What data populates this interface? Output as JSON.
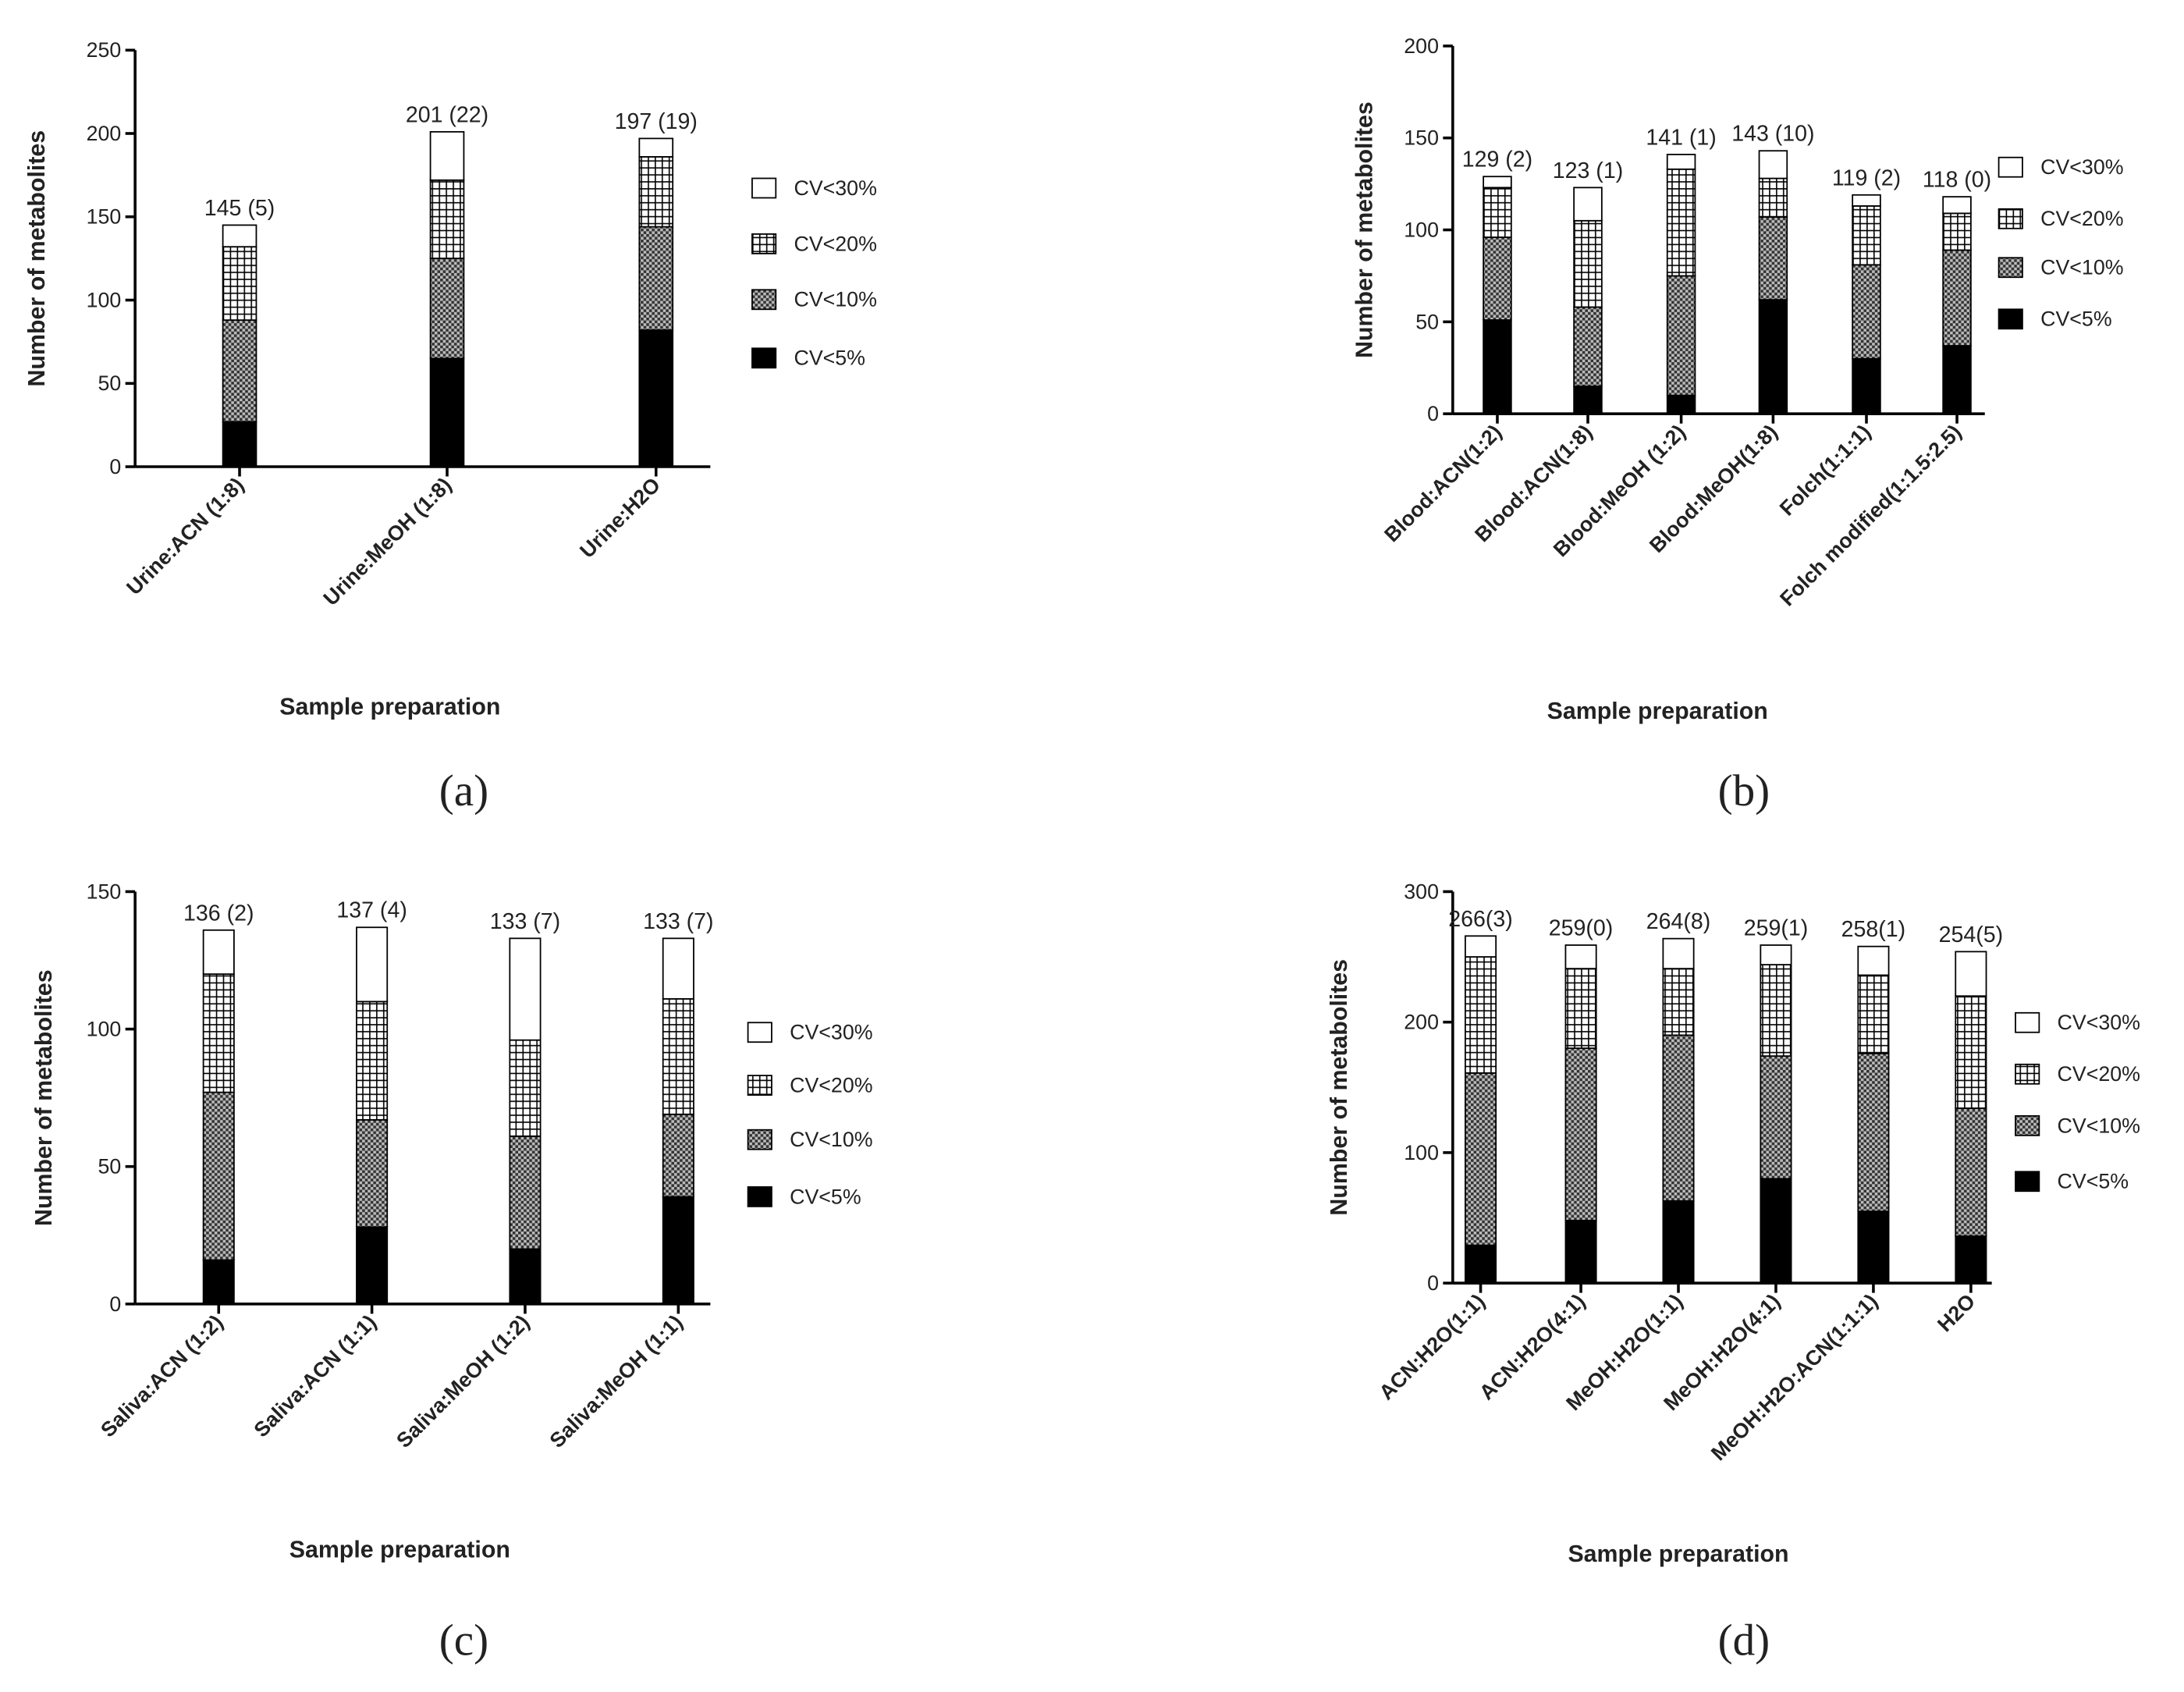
{
  "chart_data": [
    {
      "type": "stacked_bar",
      "caption": "(a)",
      "x_label": "Sample preparation",
      "y_label": "Number of metabolites",
      "categories": [
        "Urine:ACN (1:8)",
        "Urine:MeOH (1:8)",
        "Urine:H2O"
      ],
      "bar_labels": [
        "145 (5)",
        "201 (22)",
        "197 (19)"
      ],
      "ylim": [
        0,
        250
      ],
      "yticks": [
        0,
        50,
        100,
        150,
        200,
        250
      ],
      "series": [
        {
          "name": "CV<5%",
          "color": "#000000",
          "pattern": "solid",
          "values": [
            27,
            65,
            82
          ]
        },
        {
          "name": "CV<10%",
          "color": "#666666",
          "pattern": "checker",
          "values": [
            61,
            60,
            62
          ]
        },
        {
          "name": "CV<20%",
          "color": "#000000",
          "pattern": "grid",
          "values": [
            44,
            47,
            42
          ]
        },
        {
          "name": "CV<30%",
          "color": "#ffffff",
          "pattern": "solid",
          "values": [
            13,
            29,
            11
          ]
        }
      ]
    },
    {
      "type": "stacked_bar",
      "caption": "(b)",
      "x_label": "Sample preparation",
      "y_label": "Number of metabolites",
      "categories": [
        "Blood:ACN(1:2)",
        "Blood:ACN(1:8)",
        "Blood:MeOH (1:2)",
        "Blood:MeOH(1:8)",
        "Folch(1:1:1)",
        "Folch modified(1:1.5:2.5)"
      ],
      "bar_labels": [
        "129 (2)",
        "123 (1)",
        "141 (1)",
        "143 (10)",
        "119 (2)",
        "118 (0)"
      ],
      "ylim": [
        0,
        200
      ],
      "yticks": [
        0,
        50,
        100,
        150,
        200
      ],
      "series": [
        {
          "name": "CV<5%",
          "color": "#000000",
          "pattern": "solid",
          "values": [
            51,
            15,
            10,
            62,
            30,
            37
          ]
        },
        {
          "name": "CV<10%",
          "color": "#666666",
          "pattern": "checker",
          "values": [
            45,
            43,
            65,
            45,
            51,
            52
          ]
        },
        {
          "name": "CV<20%",
          "color": "#000000",
          "pattern": "grid",
          "values": [
            27,
            47,
            58,
            21,
            32,
            20
          ]
        },
        {
          "name": "CV<30%",
          "color": "#ffffff",
          "pattern": "solid",
          "values": [
            6,
            18,
            8,
            15,
            6,
            9
          ]
        }
      ]
    },
    {
      "type": "stacked_bar",
      "caption": "(c)",
      "x_label": "Sample preparation",
      "y_label": "Number of metabolites",
      "categories": [
        "Saliva:ACN (1:2)",
        "Saliva:ACN (1:1)",
        "Saliva:MeOH (1:2)",
        "Saliva:MeOH (1:1)"
      ],
      "bar_labels": [
        "136 (2)",
        "137 (4)",
        "133 (7)",
        "133 (7)"
      ],
      "ylim": [
        0,
        150
      ],
      "yticks": [
        0,
        50,
        100,
        150
      ],
      "series": [
        {
          "name": "CV<5%",
          "color": "#000000",
          "pattern": "solid",
          "values": [
            16,
            28,
            20,
            39
          ]
        },
        {
          "name": "CV<10%",
          "color": "#666666",
          "pattern": "checker",
          "values": [
            61,
            39,
            41,
            30
          ]
        },
        {
          "name": "CV<20%",
          "color": "#000000",
          "pattern": "grid",
          "values": [
            43,
            43,
            35,
            42
          ]
        },
        {
          "name": "CV<30%",
          "color": "#ffffff",
          "pattern": "solid",
          "values": [
            16,
            27,
            37,
            22
          ]
        }
      ]
    },
    {
      "type": "stacked_bar",
      "caption": "(d)",
      "x_label": "Sample preparation",
      "y_label": "Number of metabolites",
      "categories": [
        "ACN:H2O(1:1)",
        "ACN:H2O(4:1)",
        "MeOH:H2O(1:1)",
        "MeOH:H2O(4:1)",
        "MeOH:H2O:ACN(1:1:1)",
        "H2O"
      ],
      "bar_labels": [
        "266(3)",
        "259(0)",
        "264(8)",
        "259(1)",
        "258(1)",
        "254(5)"
      ],
      "ylim": [
        0,
        300
      ],
      "yticks": [
        0,
        100,
        200,
        300
      ],
      "series": [
        {
          "name": "CV<5%",
          "color": "#000000",
          "pattern": "solid",
          "values": [
            29,
            48,
            63,
            80,
            55,
            36
          ]
        },
        {
          "name": "CV<10%",
          "color": "#666666",
          "pattern": "checker",
          "values": [
            132,
            132,
            127,
            94,
            121,
            98
          ]
        },
        {
          "name": "CV<20%",
          "color": "#000000",
          "pattern": "grid",
          "values": [
            89,
            61,
            51,
            70,
            60,
            86
          ]
        },
        {
          "name": "CV<30%",
          "color": "#ffffff",
          "pattern": "solid",
          "values": [
            16,
            18,
            23,
            15,
            22,
            34
          ]
        }
      ]
    }
  ]
}
